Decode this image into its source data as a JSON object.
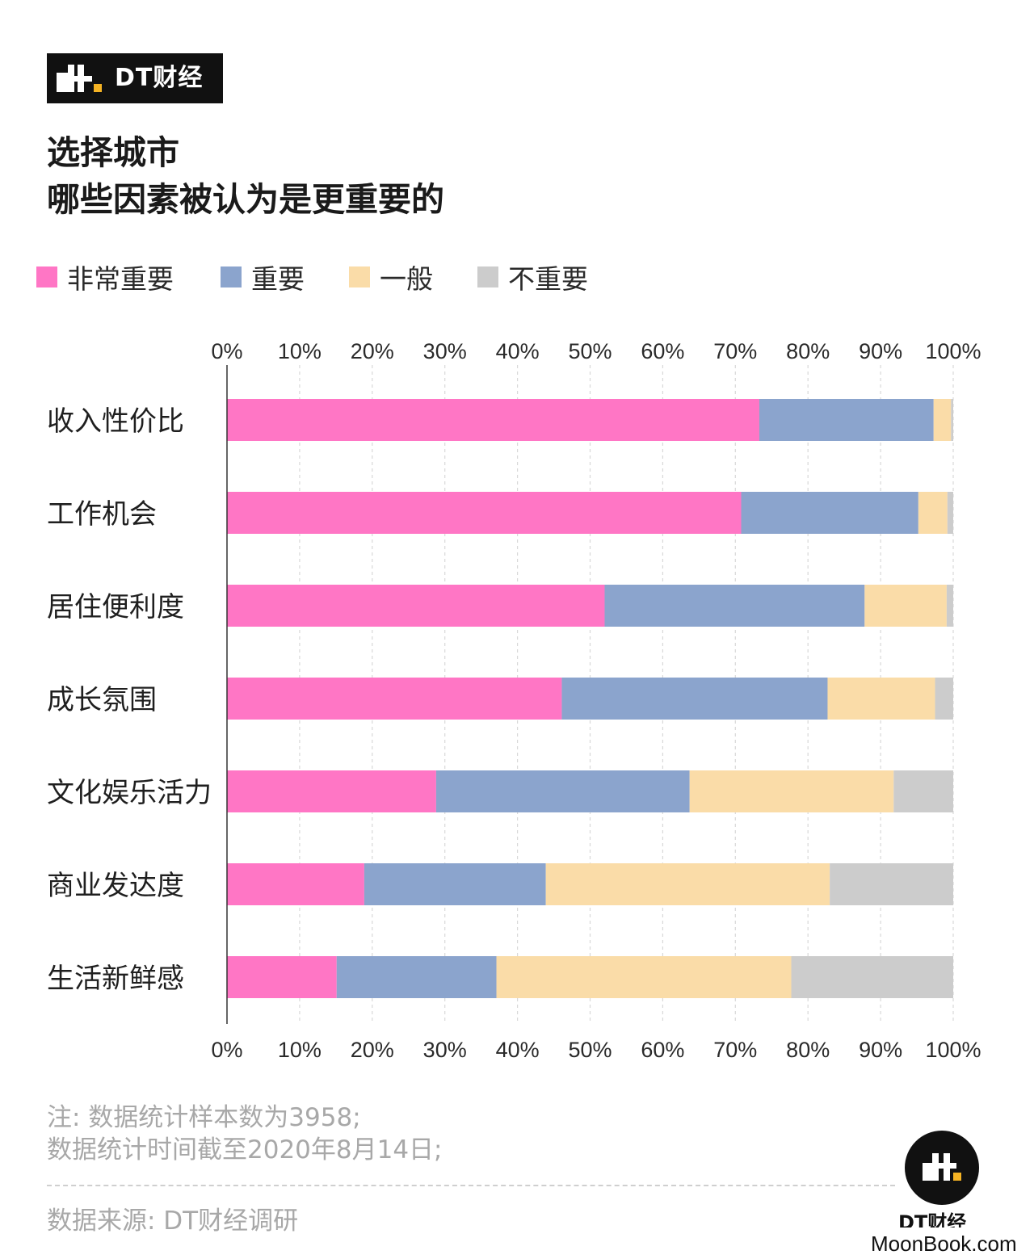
{
  "brand": {
    "name": "DT财经"
  },
  "title": {
    "line1": "选择城市",
    "line2": "哪些因素被认为是更重要的"
  },
  "legend": [
    {
      "label": "非常重要",
      "color": "#FF76C5"
    },
    {
      "label": "重要",
      "color": "#8BA4CD"
    },
    {
      "label": "一般",
      "color": "#FADCA8"
    },
    {
      "label": "不重要",
      "color": "#CCCCCC"
    }
  ],
  "chart_data": {
    "type": "bar",
    "orientation": "horizontal",
    "stacked": true,
    "categories": [
      "收入性价比",
      "工作机会",
      "居住便利度",
      "成长氛围",
      "文化娱乐活力",
      "商业发达度",
      "生活新鲜感"
    ],
    "series": [
      {
        "name": "非常重要",
        "color": "#FF76C5",
        "values": [
          73.3,
          70.8,
          52.0,
          46.1,
          28.8,
          18.9,
          15.1
        ]
      },
      {
        "name": "重要",
        "color": "#8BA4CD",
        "values": [
          24.0,
          24.4,
          35.8,
          36.6,
          34.9,
          25.0,
          22.0
        ]
      },
      {
        "name": "一般",
        "color": "#FADCA8",
        "values": [
          2.4,
          4.0,
          11.3,
          14.8,
          28.1,
          39.1,
          40.6
        ]
      },
      {
        "name": "不重要",
        "color": "#CCCCCC",
        "values": [
          0.3,
          0.8,
          0.9,
          2.5,
          8.2,
          17.0,
          22.3
        ]
      }
    ],
    "xlim": [
      0,
      100
    ],
    "xticks": [
      "0%",
      "10%",
      "20%",
      "30%",
      "40%",
      "50%",
      "60%",
      "70%",
      "80%",
      "90%",
      "100%"
    ],
    "grid": true,
    "legend_position": "top"
  },
  "notes": {
    "line1": "注: 数据统计样本数为3958;",
    "line2": "数据统计时间截至2020年8月14日;"
  },
  "source": "数据来源: DT财经调研",
  "footer_logo_text": "DT财经",
  "watermark_site": "MoonBook.com"
}
